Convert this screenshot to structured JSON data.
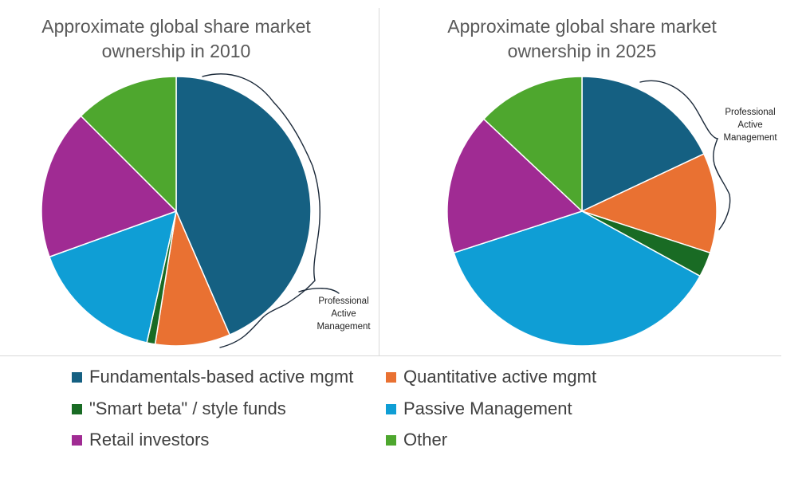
{
  "chart_data": [
    {
      "type": "pie",
      "title_lines": [
        "Approximate global share market",
        "ownership in 2010"
      ],
      "categories": [
        "Fundamentals-based active mgmt",
        "Quantitative active mgmt",
        "\"Smart beta\" / style funds",
        "Passive Management",
        "Retail investors",
        "Other"
      ],
      "values": [
        43.5,
        9,
        1,
        16,
        18,
        12.5
      ],
      "annotation_lines": [
        "Professional",
        "Active",
        "Management"
      ]
    },
    {
      "type": "pie",
      "title_lines": [
        "Approximate global share market",
        "ownership in 2025"
      ],
      "categories": [
        "Fundamentals-based active mgmt",
        "Quantitative active mgmt",
        "\"Smart beta\" / style funds",
        "Passive Management",
        "Retail investors",
        "Other"
      ],
      "values": [
        18,
        12,
        3,
        37,
        17,
        13
      ],
      "annotation_lines": [
        "Professional",
        "Active",
        "Management"
      ]
    }
  ],
  "legend": {
    "placement": "bottom",
    "items": [
      {
        "label": "Fundamentals-based active mgmt",
        "color": "#156082"
      },
      {
        "label": "Quantitative active mgmt",
        "color": "#E97132"
      },
      {
        "label": "\"Smart beta\" / style funds",
        "color": "#196B24"
      },
      {
        "label": "Passive Management",
        "color": "#0F9ED5"
      },
      {
        "label": "Retail investors",
        "color": "#A02B93"
      },
      {
        "label": "Other",
        "color": "#4EA72E"
      }
    ]
  }
}
